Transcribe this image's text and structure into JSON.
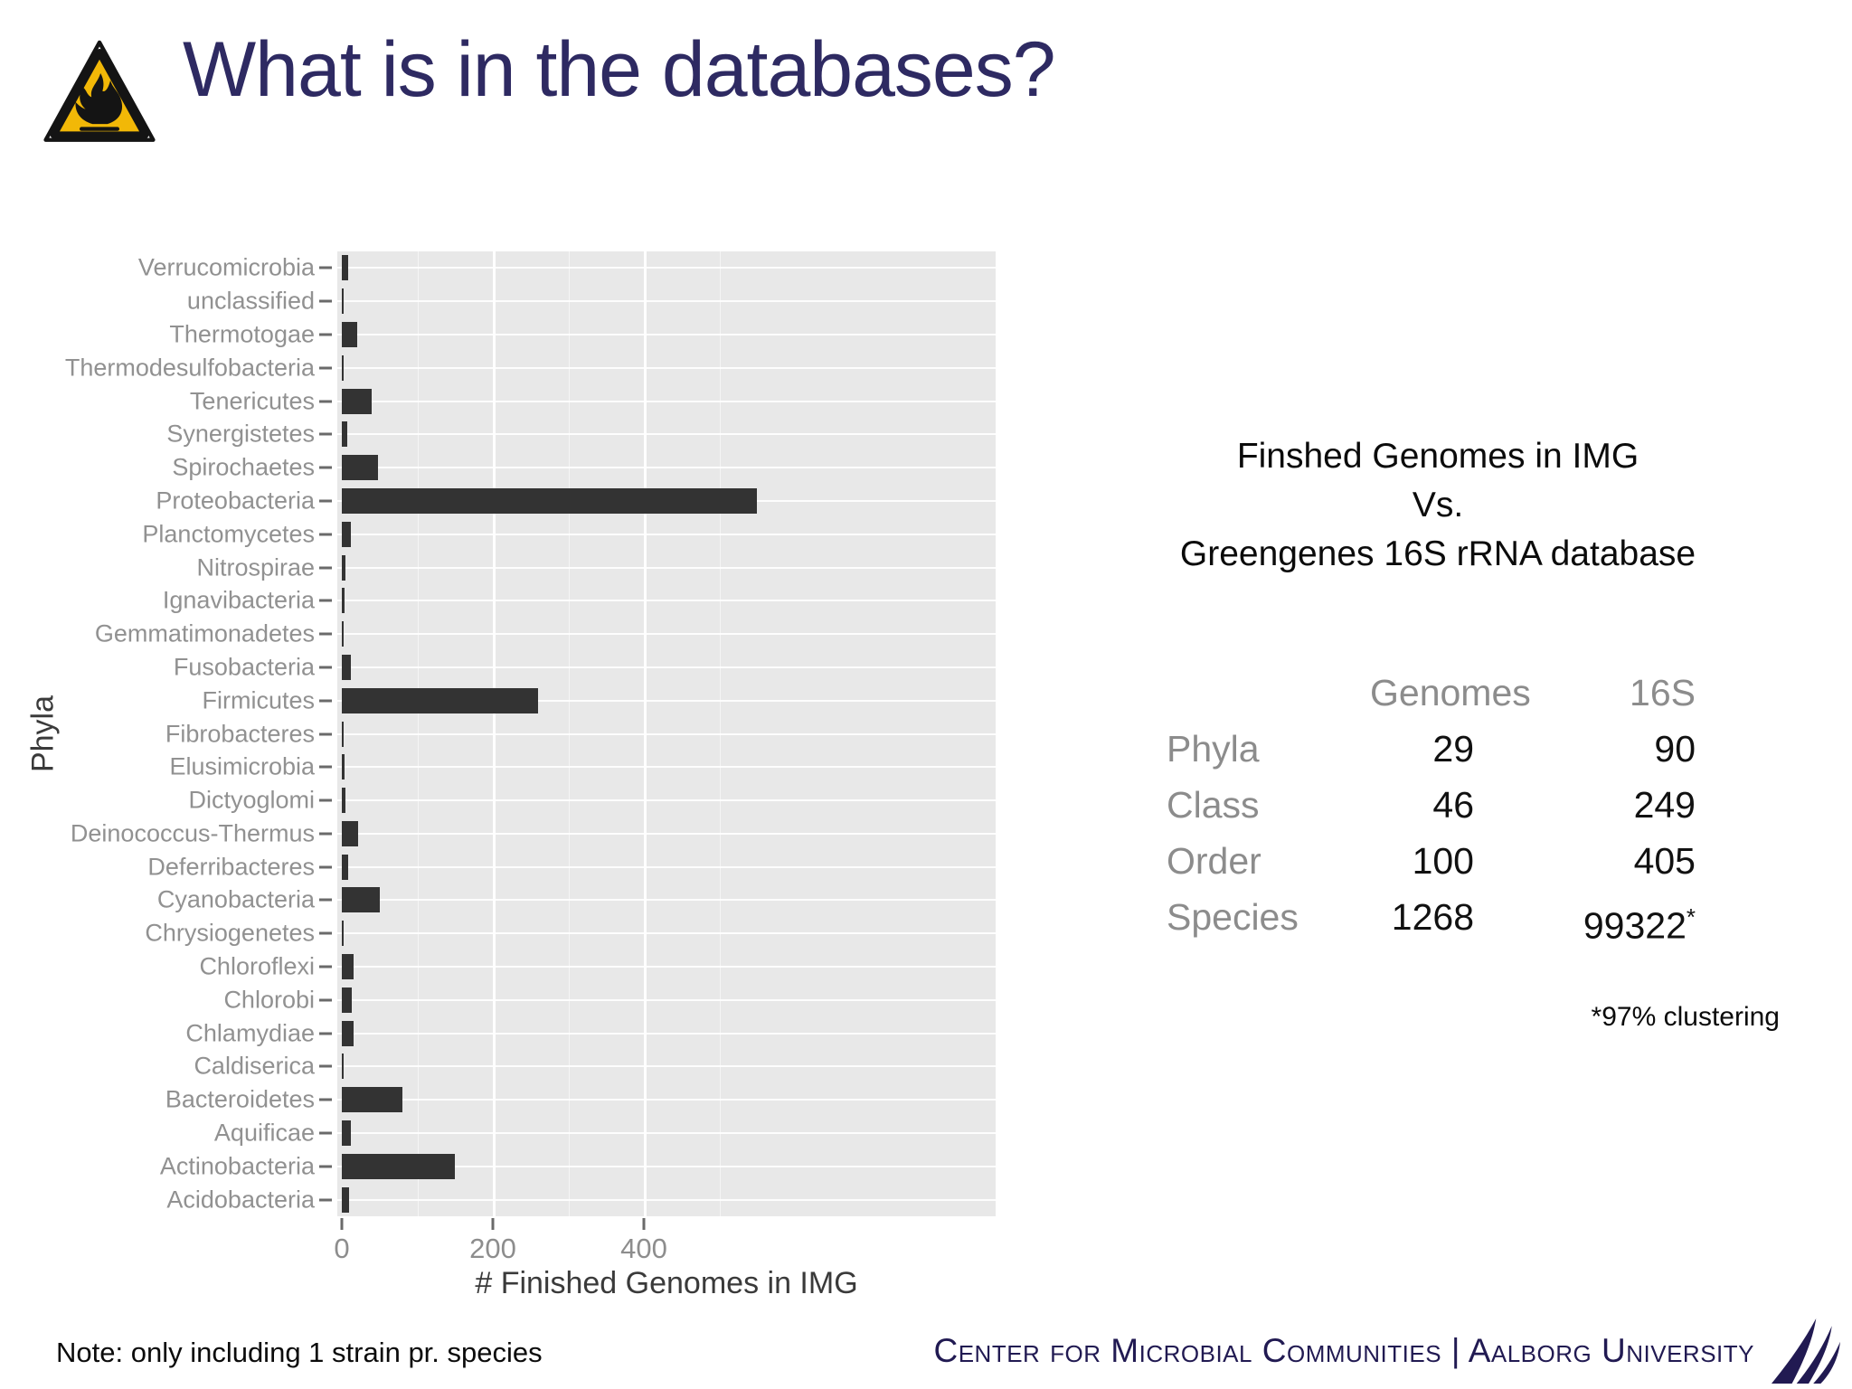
{
  "slide": {
    "title": "What is in the databases?",
    "note": "Note: only including 1 strain pr. species",
    "footer_text": "Center for Microbial Communities | Aalborg University"
  },
  "right_panel": {
    "heading_line1": "Finshed Genomes in IMG",
    "heading_line2": "Vs.",
    "heading_line3": "Greengenes 16S rRNA database",
    "table": {
      "col_headers": [
        "Genomes",
        "16S"
      ],
      "rows": [
        {
          "label": "Phyla",
          "genomes": "29",
          "s16": "90",
          "s16_sup": ""
        },
        {
          "label": "Class",
          "genomes": "46",
          "s16": "249",
          "s16_sup": ""
        },
        {
          "label": "Order",
          "genomes": "100",
          "s16": "405",
          "s16_sup": ""
        },
        {
          "label": "Species",
          "genomes": "1268",
          "s16": "99322",
          "s16_sup": "*"
        }
      ]
    },
    "footnote": "*97% clustering"
  },
  "chart_data": {
    "type": "bar",
    "orientation": "horizontal",
    "title": "",
    "xlabel": "# Finished Genomes in IMG",
    "ylabel": "Phyla",
    "xlim": [
      0,
      870
    ],
    "xticks": [
      0,
      200,
      400
    ],
    "xticks_minor": [
      100,
      300,
      500
    ],
    "grid": "white gridlines on gray panel (ggplot style)",
    "legend": "none",
    "bar_color": "#333333",
    "panel_bg": "#e8e8e8",
    "categories": [
      "Verrucomicrobia",
      "unclassified",
      "Thermotogae",
      "Thermodesulfobacteria",
      "Tenericutes",
      "Synergistetes",
      "Spirochaetes",
      "Proteobacteria",
      "Planctomycetes",
      "Nitrospirae",
      "Ignavibacteria",
      "Gemmatimonadetes",
      "Fusobacteria",
      "Firmicutes",
      "Fibrobacteres",
      "Elusimicrobia",
      "Dictyoglomi",
      "Deinococcus-Thermus",
      "Deferribacteres",
      "Cyanobacteria",
      "Chrysiogenetes",
      "Chloroflexi",
      "Chlorobi",
      "Chlamydiae",
      "Caldiserica",
      "Bacteroidetes",
      "Aquificae",
      "Actinobacteria",
      "Acidobacteria"
    ],
    "values": [
      8,
      2,
      20,
      2,
      40,
      7,
      48,
      550,
      12,
      5,
      3,
      1,
      12,
      260,
      2,
      4,
      5,
      22,
      8,
      50,
      1,
      16,
      13,
      15,
      1,
      80,
      12,
      150,
      10
    ]
  }
}
